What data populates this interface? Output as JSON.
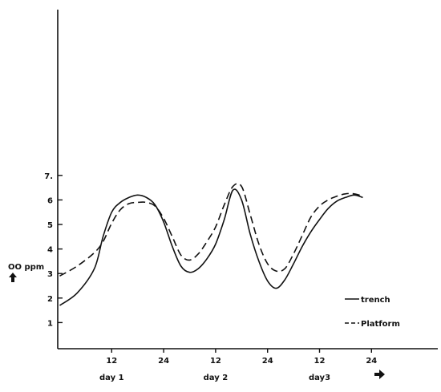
{
  "chart_data": {
    "type": "line",
    "title": "",
    "xlabel": "",
    "ylabel": "OO ppm",
    "x_unit": "hours",
    "xlim": [
      0,
      72
    ],
    "ylim": [
      0,
      7
    ],
    "grid": false,
    "legend_placement": "bottom-right",
    "y_ticks": [
      {
        "value": 1,
        "label": "1"
      },
      {
        "value": 2,
        "label": "2"
      },
      {
        "value": 3,
        "label": "3"
      },
      {
        "value": 4,
        "label": "4"
      },
      {
        "value": 5,
        "label": "5"
      },
      {
        "value": 6,
        "label": "6"
      },
      {
        "value": 7,
        "label": "7."
      }
    ],
    "x_ticks": [
      {
        "value": 12,
        "label": "12"
      },
      {
        "value": 24,
        "label": "24"
      },
      {
        "value": 36,
        "label": "12"
      },
      {
        "value": 48,
        "label": "24"
      },
      {
        "value": 60,
        "label": "12"
      },
      {
        "value": 72,
        "label": "24"
      }
    ],
    "day_labels": [
      {
        "x": 12,
        "label": "day 1"
      },
      {
        "x": 36,
        "label": "day 2"
      },
      {
        "x": 60,
        "label": "day3"
      }
    ],
    "series": [
      {
        "name": "trench",
        "style": "solid",
        "x": [
          0,
          4,
          8,
          10,
          12,
          14,
          16,
          18,
          20,
          22,
          24,
          26,
          28,
          30,
          32,
          34,
          36,
          38,
          40,
          42,
          44,
          46,
          48,
          50,
          52,
          54,
          56,
          58,
          60,
          62,
          64,
          66,
          68,
          70
        ],
        "values": [
          1.7,
          2.2,
          3.2,
          4.5,
          5.5,
          5.9,
          6.1,
          6.2,
          6.1,
          5.8,
          5.1,
          4.1,
          3.3,
          3.05,
          3.2,
          3.6,
          4.2,
          5.2,
          6.4,
          6.0,
          4.6,
          3.5,
          2.7,
          2.4,
          2.75,
          3.4,
          4.1,
          4.7,
          5.2,
          5.65,
          5.95,
          6.1,
          6.2,
          6.1
        ]
      },
      {
        "name": "Platform",
        "style": "dashed",
        "x": [
          0,
          4,
          8,
          10,
          12,
          14,
          16,
          18,
          20,
          22,
          24,
          26,
          28,
          30,
          32,
          34,
          36,
          38,
          40,
          42,
          44,
          46,
          48,
          50,
          52,
          54,
          56,
          58,
          60,
          62,
          64,
          66,
          68,
          70
        ],
        "values": [
          2.9,
          3.3,
          3.85,
          4.3,
          5.05,
          5.6,
          5.85,
          5.9,
          5.9,
          5.75,
          5.25,
          4.5,
          3.75,
          3.55,
          3.8,
          4.3,
          4.9,
          5.8,
          6.55,
          6.55,
          5.4,
          4.2,
          3.4,
          3.1,
          3.2,
          3.8,
          4.55,
          5.3,
          5.75,
          6.0,
          6.15,
          6.25,
          6.25,
          6.15
        ]
      }
    ]
  }
}
